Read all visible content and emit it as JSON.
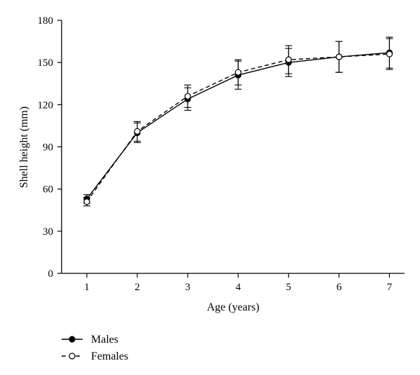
{
  "chart_data": {
    "type": "line",
    "xlabel": "Age (years)",
    "ylabel": "Shell height (mm)",
    "x": [
      1,
      2,
      3,
      4,
      5,
      6,
      7
    ],
    "xlim": [
      0.5,
      7.3
    ],
    "ylim": [
      0,
      180
    ],
    "xticks": [
      "1",
      "2",
      "3",
      "4",
      "5",
      "6",
      "7"
    ],
    "yticks": [
      "0",
      "30",
      "60",
      "90",
      "120",
      "150",
      "180"
    ],
    "grid": false,
    "legend_position": "bottom-left",
    "series": [
      {
        "name": "Males",
        "marker": "filled-circle",
        "line_style": "solid",
        "values": [
          53,
          100,
          124,
          141,
          150,
          154,
          157
        ],
        "error": [
          3,
          7,
          8,
          10,
          10,
          11,
          11
        ]
      },
      {
        "name": "Females",
        "marker": "open-circle",
        "line_style": "dashed",
        "values": [
          51,
          101,
          126,
          143,
          152,
          154,
          156
        ],
        "error": [
          3,
          7,
          8,
          9,
          10,
          11,
          11
        ]
      }
    ]
  },
  "colors": {
    "ink": "#000000",
    "background": "#ffffff"
  }
}
